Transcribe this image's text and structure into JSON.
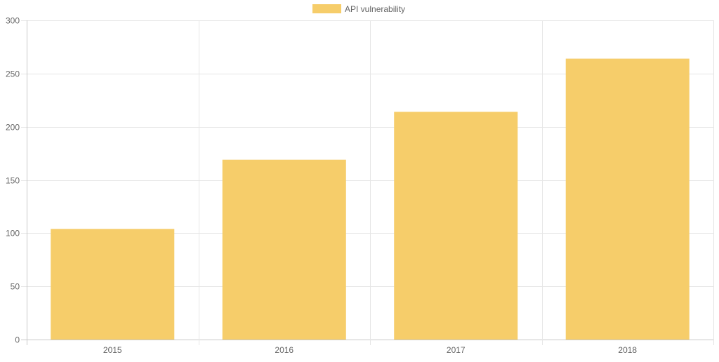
{
  "chart_data": {
    "type": "bar",
    "categories": [
      "2015",
      "2016",
      "2017",
      "2018"
    ],
    "series": [
      {
        "name": "API vulnerability",
        "values": [
          104,
          169,
          214,
          264
        ],
        "color": "#f6cd6a"
      }
    ],
    "ylim": [
      0,
      300
    ],
    "yticks": [
      "0",
      "50",
      "100",
      "150",
      "200",
      "250",
      "300"
    ],
    "grid": true,
    "legend_position": "top-center",
    "grid_color": "#e6e6e6",
    "axis_color": "#c8c8c8"
  }
}
